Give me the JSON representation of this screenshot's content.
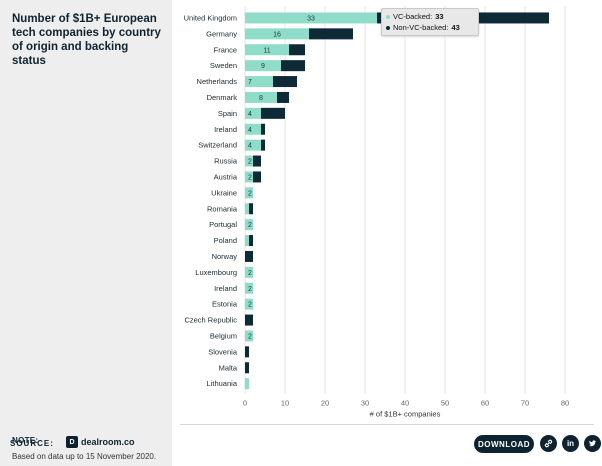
{
  "title": "Number of $1B+ European tech companies by country of origin and backing status",
  "note": {
    "label": "NOTE:",
    "text": "Based on data up to 15 November 2020."
  },
  "footer": {
    "source_label": "SOURCE:",
    "source_name": "dealroom.co",
    "source_mark": "D",
    "download_label": "DOWNLOAD",
    "icons": [
      "link-icon",
      "linkedin-icon",
      "twitter-icon"
    ],
    "linkedin_glyph": "in"
  },
  "tooltip": {
    "vc_label": "VC-backed:",
    "vc_value": "33",
    "non_vc_label": "Non-VC-backed:",
    "non_vc_value": "43"
  },
  "colors": {
    "vc": "#8fdcc8",
    "non_vc": "#0e2a36",
    "grid": "#e3e3e3",
    "axis_text": "#666666"
  },
  "chart_data": {
    "type": "bar",
    "orientation": "horizontal",
    "stacked": true,
    "xlabel": "# of $1B+ companies",
    "xlim": [
      0,
      80
    ],
    "xticks": [
      0,
      10,
      20,
      30,
      40,
      50,
      60,
      70,
      80
    ],
    "grid": true,
    "categories": [
      "United Kingdom",
      "Germany",
      "France",
      "Sweden",
      "Netherlands",
      "Denmark",
      "Spain",
      "Ireland",
      "Switzerland",
      "Russia",
      "Austria",
      "Ukraine",
      "Romania",
      "Portugal",
      "Poland",
      "Norway",
      "Luxembourg",
      "Ireland",
      "Estonia",
      "Czech Republic",
      "Belgium",
      "Slovenia",
      "Malta",
      "Lithuania"
    ],
    "series": [
      {
        "name": "VC-backed",
        "values": [
          33,
          16,
          11,
          9,
          7,
          8,
          4,
          4,
          4,
          2,
          2,
          2,
          1,
          2,
          1,
          0,
          2,
          2,
          2,
          0,
          2,
          0,
          0,
          1
        ]
      },
      {
        "name": "Non-VC-backed",
        "values": [
          43,
          11,
          4,
          6,
          6,
          3,
          6,
          1,
          1,
          2,
          2,
          0,
          1,
          0,
          1,
          2,
          0,
          0,
          0,
          2,
          0,
          1,
          1,
          0
        ]
      }
    ],
    "labeled_values": [
      33,
      16,
      11,
      9,
      7,
      8,
      4,
      4,
      4,
      2,
      2,
      2,
      null,
      2,
      null,
      null,
      2,
      2,
      2,
      null,
      2,
      null,
      null,
      null
    ]
  }
}
